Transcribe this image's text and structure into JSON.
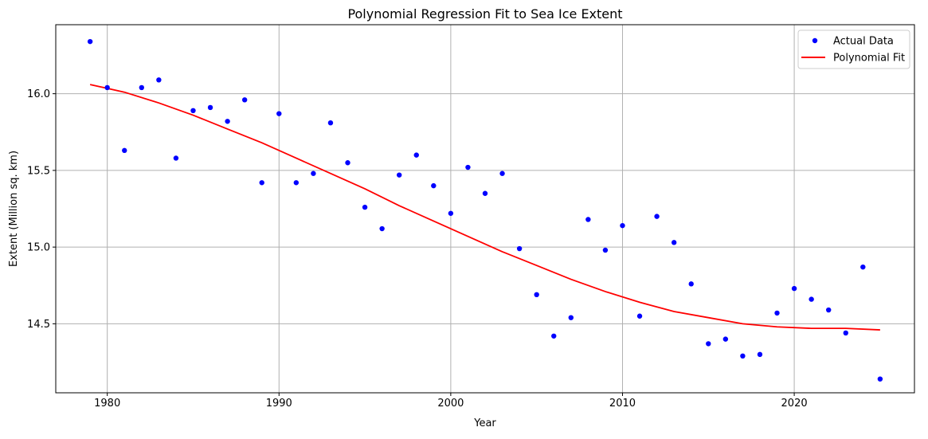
{
  "chart_data": {
    "type": "scatter",
    "title": "Polynomial Regression Fit to Sea Ice Extent",
    "xlabel": "Year",
    "ylabel": "Extent (Million sq. km)",
    "xlim": [
      1977,
      2027
    ],
    "ylim": [
      14.05,
      16.45
    ],
    "x_ticks": [
      1980,
      1990,
      2000,
      2010,
      2020
    ],
    "y_ticks": [
      14.5,
      15.0,
      15.5,
      16.0
    ],
    "x_tick_labels": [
      "1980",
      "1990",
      "2000",
      "2010",
      "2020"
    ],
    "y_tick_labels": [
      "14.5",
      "15.0",
      "15.5",
      "16.0"
    ],
    "grid": true,
    "legend_position": "top-right",
    "series": [
      {
        "name": "Actual Data",
        "kind": "scatter",
        "color": "#0000ff",
        "x": [
          1979,
          1980,
          1981,
          1982,
          1983,
          1984,
          1985,
          1986,
          1987,
          1988,
          1989,
          1990,
          1991,
          1992,
          1993,
          1994,
          1995,
          1996,
          1997,
          1998,
          1999,
          2000,
          2001,
          2002,
          2003,
          2004,
          2005,
          2006,
          2007,
          2008,
          2009,
          2010,
          2011,
          2012,
          2013,
          2014,
          2015,
          2016,
          2017,
          2018,
          2019,
          2020,
          2021,
          2022,
          2023,
          2024,
          2025
        ],
        "y": [
          16.34,
          16.04,
          15.63,
          16.04,
          16.09,
          15.58,
          15.89,
          15.91,
          15.82,
          15.96,
          15.42,
          15.87,
          15.42,
          15.48,
          15.81,
          15.55,
          15.26,
          15.12,
          15.47,
          15.6,
          15.4,
          15.22,
          15.52,
          15.35,
          15.48,
          14.99,
          14.69,
          14.42,
          14.54,
          15.18,
          14.98,
          15.14,
          14.55,
          15.2,
          15.03,
          14.76,
          14.37,
          14.4,
          14.29,
          14.3,
          14.57,
          14.73,
          14.66,
          14.59,
          14.44,
          14.87,
          14.14
        ]
      },
      {
        "name": "Polynomial Fit",
        "kind": "line",
        "color": "#ff0000",
        "x": [
          1979,
          1981,
          1983,
          1985,
          1987,
          1989,
          1991,
          1993,
          1995,
          1997,
          1999,
          2001,
          2003,
          2005,
          2007,
          2009,
          2011,
          2013,
          2015,
          2017,
          2019,
          2021,
          2023,
          2025
        ],
        "y": [
          16.06,
          16.01,
          15.94,
          15.86,
          15.77,
          15.68,
          15.58,
          15.48,
          15.38,
          15.27,
          15.17,
          15.07,
          14.97,
          14.88,
          14.79,
          14.71,
          14.64,
          14.58,
          14.54,
          14.5,
          14.48,
          14.47,
          14.47,
          14.46
        ]
      }
    ]
  }
}
